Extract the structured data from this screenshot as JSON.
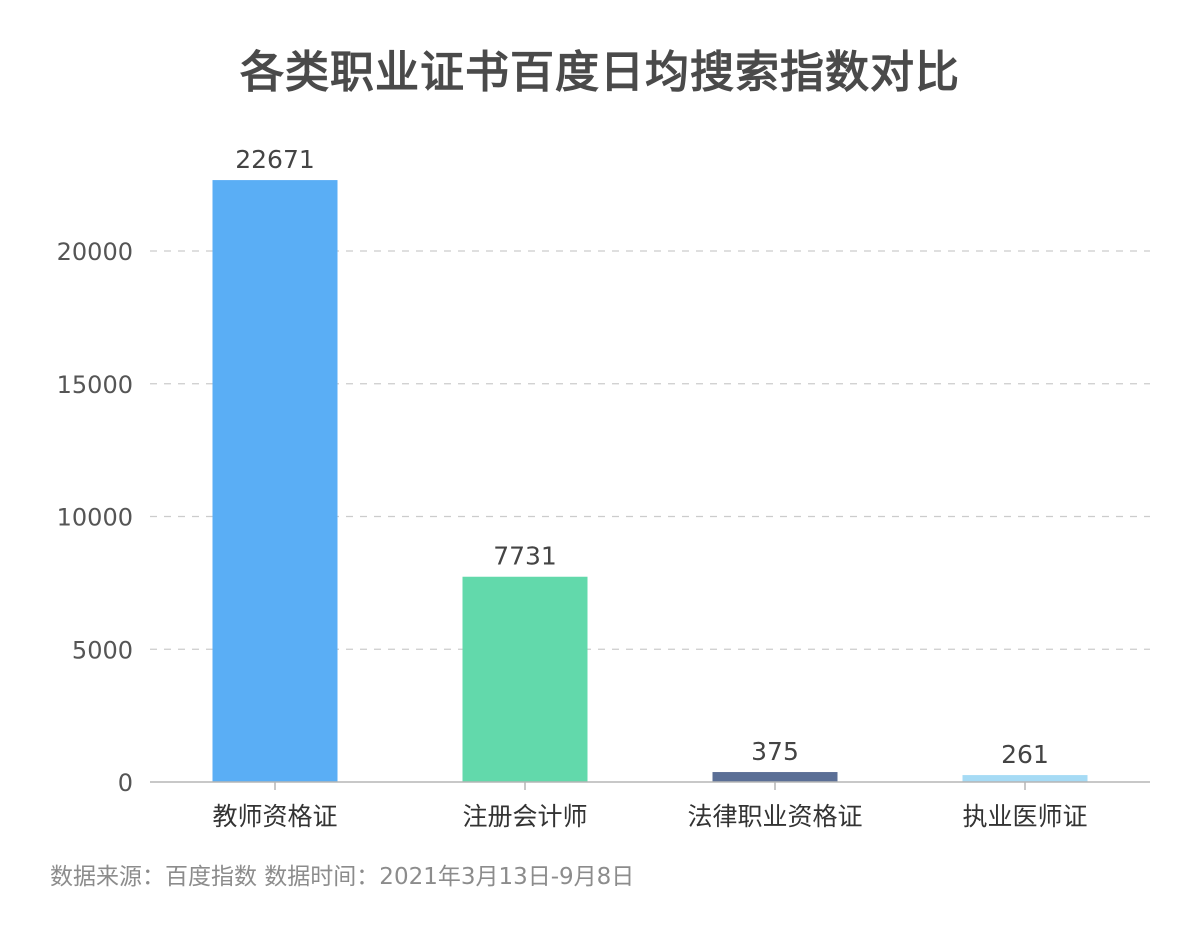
{
  "chart_data": {
    "type": "bar",
    "title": "各类职业证书百度日均搜索指数对比",
    "categories": [
      "教师资格证",
      "注册会计师",
      "法律职业资格证",
      "执业医师证"
    ],
    "values": [
      22671,
      7731,
      375,
      261
    ],
    "colors": [
      "#5aaef5",
      "#62d9ab",
      "#5b6f96",
      "#a6dbf5"
    ],
    "data_labels": [
      "22671",
      "7731",
      "375",
      "261"
    ],
    "yticks": [
      0,
      5000,
      10000,
      15000,
      20000
    ],
    "ytick_labels": [
      "0",
      "5000",
      "10000",
      "15000",
      "20000"
    ],
    "ylim": [
      0,
      23000
    ],
    "grid": true,
    "xlabel": "",
    "ylabel": ""
  },
  "footer": {
    "source": "数据来源：百度指数 数据时间：2021年3月13日-9月8日"
  }
}
